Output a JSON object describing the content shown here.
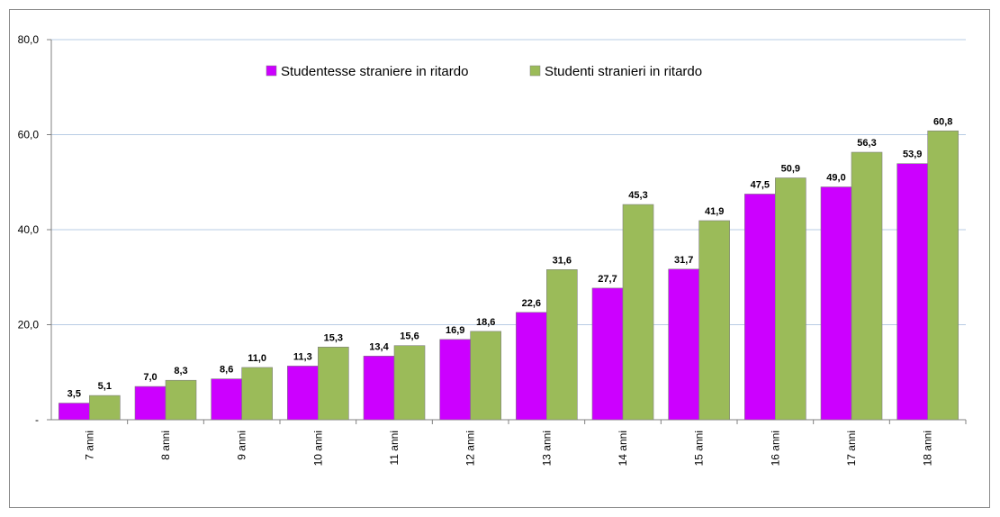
{
  "chart_data": {
    "type": "bar",
    "title": "",
    "xlabel": "",
    "ylabel": "",
    "ylim": [
      0,
      80
    ],
    "yticks": [
      {
        "value": 0,
        "label": "-"
      },
      {
        "value": 20,
        "label": "20,0"
      },
      {
        "value": 40,
        "label": "40,0"
      },
      {
        "value": 60,
        "label": "60,0"
      },
      {
        "value": 80,
        "label": "80,0"
      }
    ],
    "grid": true,
    "legend_position": "top-center",
    "categories": [
      "7 anni",
      "8 anni",
      "9 anni",
      "10 anni",
      "11 anni",
      "12 anni",
      "13 anni",
      "14 anni",
      "15 anni",
      "16 anni",
      "17 anni",
      "18 anni"
    ],
    "series": [
      {
        "name": "Studentesse straniere in ritardo",
        "color": "#cc00ff",
        "values": [
          3.5,
          7.0,
          8.6,
          11.3,
          13.4,
          16.9,
          22.6,
          27.7,
          31.7,
          47.5,
          49.0,
          53.9
        ],
        "labels": [
          "3,5",
          "7,0",
          "8,6",
          "11,3",
          "13,4",
          "16,9",
          "22,6",
          "27,7",
          "31,7",
          "47,5",
          "49,0",
          "53,9"
        ]
      },
      {
        "name": "Studenti stranieri in ritardo",
        "color": "#9bbb59",
        "values": [
          5.1,
          8.3,
          11.0,
          15.3,
          15.6,
          18.6,
          31.6,
          45.3,
          41.9,
          50.9,
          56.3,
          60.8
        ],
        "labels": [
          "5,1",
          "8,3",
          "11,0",
          "15,3",
          "15,6",
          "18,6",
          "31,6",
          "45,3",
          "41,9",
          "50,9",
          "56,3",
          "60,8"
        ]
      }
    ]
  }
}
